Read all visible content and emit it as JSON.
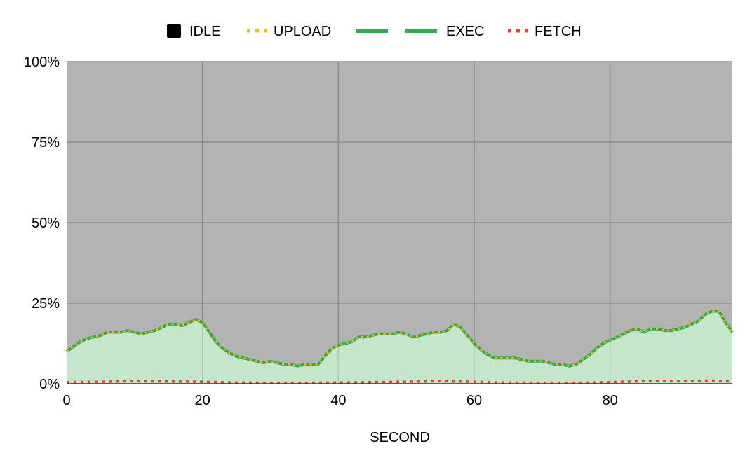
{
  "chart_data": {
    "type": "area",
    "title": "",
    "xlabel": "SECOND",
    "ylabel": "",
    "xlim": [
      0,
      98
    ],
    "ylim": [
      0,
      100
    ],
    "x_ticks": [
      0,
      20,
      40,
      60,
      80
    ],
    "y_ticks": [
      0,
      25,
      50,
      75,
      100
    ],
    "x_tick_labels": [
      "0",
      "20",
      "40",
      "60",
      "80"
    ],
    "y_tick_labels": [
      "0%",
      "25%",
      "50%",
      "75%",
      "100%"
    ],
    "grid": true,
    "legend_position": "top",
    "background": "#b3b3b3",
    "legend": [
      {
        "label": "IDLE",
        "color": "#000000",
        "style": "square"
      },
      {
        "label": "UPLOAD",
        "color": "#fbbc04",
        "style": "dotted"
      },
      {
        "label": "",
        "color": "#34a853",
        "style": "solid"
      },
      {
        "label": "EXEC",
        "color": "#34a853",
        "style": "solid"
      },
      {
        "label": "FETCH",
        "color": "#ea4335",
        "style": "dotted"
      }
    ],
    "series": [
      {
        "name": "EXEC",
        "color": "#34a853",
        "fill": "#c5e6cb",
        "points": [
          [
            0,
            10
          ],
          [
            1,
            11.5
          ],
          [
            2,
            13
          ],
          [
            3,
            14
          ],
          [
            4,
            14.5
          ],
          [
            5,
            15
          ],
          [
            6,
            16
          ],
          [
            7,
            16
          ],
          [
            8,
            16
          ],
          [
            9,
            16.5
          ],
          [
            10,
            16
          ],
          [
            11,
            15.5
          ],
          [
            12,
            16
          ],
          [
            13,
            16.5
          ],
          [
            14,
            17.5
          ],
          [
            15,
            18.5
          ],
          [
            16,
            18.5
          ],
          [
            17,
            18
          ],
          [
            18,
            19
          ],
          [
            19,
            20
          ],
          [
            20,
            19
          ],
          [
            21,
            16
          ],
          [
            22,
            13
          ],
          [
            23,
            11
          ],
          [
            24,
            9.5
          ],
          [
            25,
            8.5
          ],
          [
            26,
            8
          ],
          [
            27,
            7.5
          ],
          [
            28,
            7
          ],
          [
            29,
            6.5
          ],
          [
            30,
            7
          ],
          [
            31,
            6.5
          ],
          [
            32,
            6
          ],
          [
            33,
            6
          ],
          [
            34,
            5.5
          ],
          [
            35,
            6
          ],
          [
            36,
            6
          ],
          [
            37,
            6
          ],
          [
            38,
            8.5
          ],
          [
            39,
            11
          ],
          [
            40,
            12
          ],
          [
            41,
            12.5
          ],
          [
            42,
            13
          ],
          [
            43,
            14.5
          ],
          [
            44,
            14.5
          ],
          [
            45,
            15
          ],
          [
            46,
            15.5
          ],
          [
            47,
            15.5
          ],
          [
            48,
            15.5
          ],
          [
            49,
            16
          ],
          [
            50,
            15.5
          ],
          [
            51,
            14.5
          ],
          [
            52,
            15
          ],
          [
            53,
            15.5
          ],
          [
            54,
            16
          ],
          [
            55,
            16
          ],
          [
            56,
            16.5
          ],
          [
            57,
            18.5
          ],
          [
            58,
            17.5
          ],
          [
            59,
            15
          ],
          [
            60,
            12.5
          ],
          [
            61,
            10.5
          ],
          [
            62,
            9
          ],
          [
            63,
            8
          ],
          [
            64,
            8
          ],
          [
            65,
            8
          ],
          [
            66,
            8
          ],
          [
            67,
            7.5
          ],
          [
            68,
            7
          ],
          [
            69,
            7
          ],
          [
            70,
            7
          ],
          [
            71,
            6.5
          ],
          [
            72,
            6
          ],
          [
            73,
            6
          ],
          [
            74,
            5.5
          ],
          [
            75,
            6
          ],
          [
            76,
            7.5
          ],
          [
            77,
            9
          ],
          [
            78,
            11
          ],
          [
            79,
            12.5
          ],
          [
            80,
            13.5
          ],
          [
            81,
            14.5
          ],
          [
            82,
            15.5
          ],
          [
            83,
            16.5
          ],
          [
            84,
            17
          ],
          [
            85,
            16
          ],
          [
            86,
            17
          ],
          [
            87,
            17
          ],
          [
            88,
            16.5
          ],
          [
            89,
            16.5
          ],
          [
            90,
            17
          ],
          [
            91,
            17.5
          ],
          [
            92,
            18.5
          ],
          [
            93,
            19.5
          ],
          [
            94,
            21.5
          ],
          [
            95,
            22.5
          ],
          [
            96,
            22.5
          ],
          [
            97,
            19
          ],
          [
            98,
            16
          ]
        ]
      },
      {
        "name": "FETCH",
        "color": "#ea4335",
        "points": [
          [
            0,
            0.5
          ],
          [
            5,
            0.6
          ],
          [
            10,
            0.8
          ],
          [
            15,
            0.7
          ],
          [
            20,
            0.6
          ],
          [
            25,
            0.4
          ],
          [
            30,
            0.3
          ],
          [
            35,
            0.3
          ],
          [
            40,
            0.4
          ],
          [
            45,
            0.5
          ],
          [
            50,
            0.6
          ],
          [
            55,
            0.8
          ],
          [
            60,
            0.6
          ],
          [
            65,
            0.4
          ],
          [
            70,
            0.3
          ],
          [
            75,
            0.3
          ],
          [
            80,
            0.5
          ],
          [
            85,
            0.8
          ],
          [
            90,
            0.9
          ],
          [
            95,
            1.0
          ],
          [
            98,
            0.7
          ]
        ]
      }
    ]
  }
}
